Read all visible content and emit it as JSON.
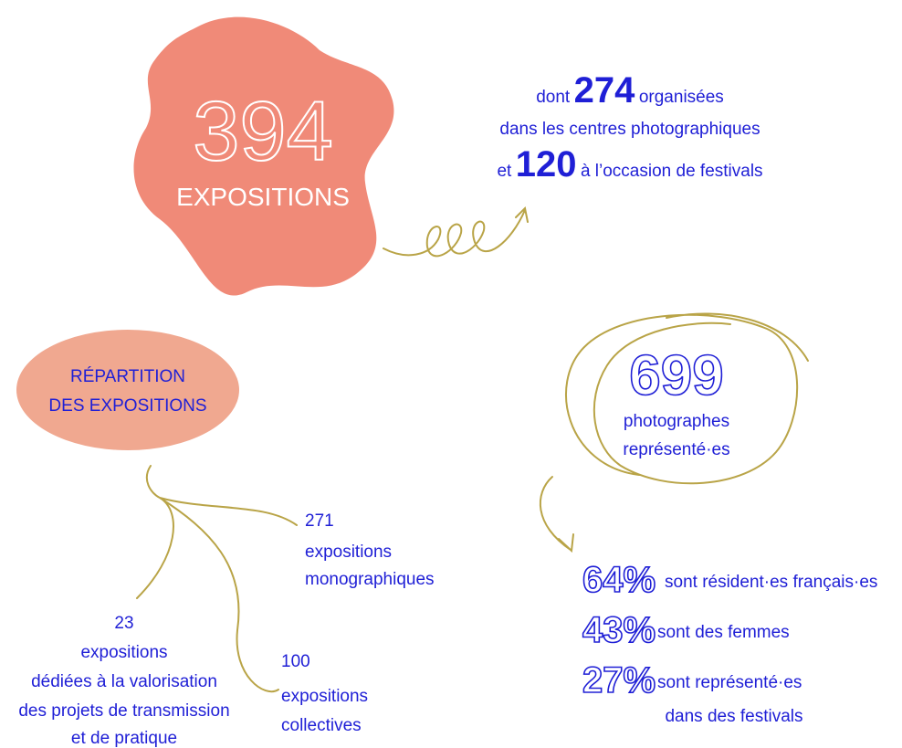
{
  "headline": {
    "number": 394,
    "label": "EXPOSITIONS"
  },
  "breakdown": {
    "line1": {
      "prefix": "dont",
      "number": 274,
      "suffix": "organisées"
    },
    "line2": "dans les centres photographiques",
    "line3": {
      "prefix": "et",
      "number": 120,
      "suffix": "à l’occasion de festivals"
    }
  },
  "distribution": {
    "title": [
      "RÉPARTITION",
      "DES EXPOSITIONS"
    ],
    "branches": [
      {
        "number": 271,
        "lines": [
          "expositions",
          "monographiques"
        ]
      },
      {
        "number": 23,
        "lines": [
          "expositions",
          "dédiées à la valorisation",
          "des projets de transmission",
          "et de pratique"
        ]
      },
      {
        "number": 100,
        "lines": [
          "expositions",
          "collectives"
        ]
      }
    ]
  },
  "photographers": {
    "number": 699,
    "lines": [
      "photographes",
      "représenté·es"
    ],
    "stats": [
      {
        "percent": "64%",
        "lines": [
          "sont résident·es français·es"
        ]
      },
      {
        "percent": "43%",
        "lines": [
          "sont des femmes"
        ]
      },
      {
        "percent": "27%",
        "lines": [
          "sont représenté·es",
          "dans des festivals"
        ]
      }
    ]
  }
}
